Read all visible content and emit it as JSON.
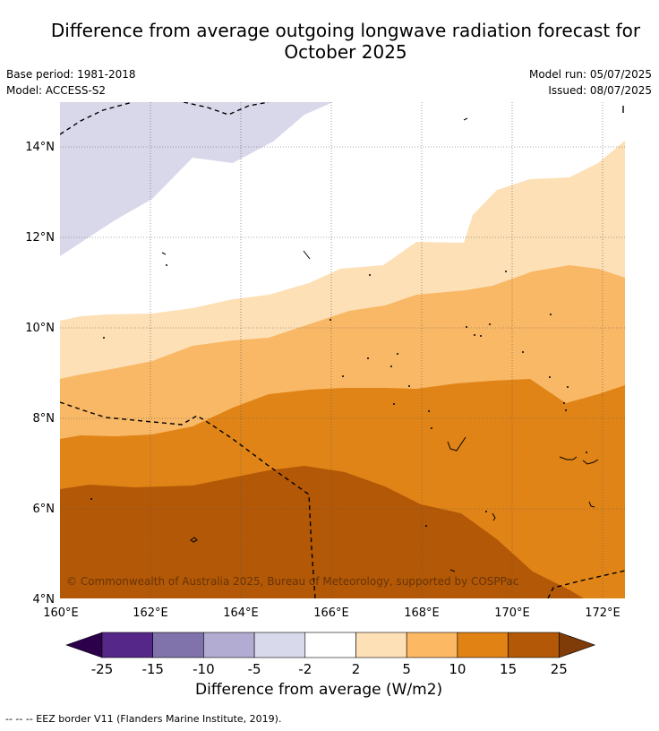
{
  "title": {
    "line1": "Difference from average outgoing longwave radiation forecast for",
    "line2": "October 2025"
  },
  "meta": {
    "base_period": "Base period: 1981-2018",
    "model": "Model: ACCESS-S2",
    "model_run": "Model run: 05/07/2025",
    "issued": "Issued: 08/07/2025"
  },
  "map": {
    "lat_labels": [
      "14°N",
      "12°N",
      "10°N",
      "8°N",
      "6°N",
      "4°N"
    ],
    "lon_labels": [
      "160°E",
      "162°E",
      "164°E",
      "166°E",
      "168°E",
      "170°E",
      "172°E"
    ],
    "copyright": "© Commonwealth of Australia 2025, Bureau of Meteorology, supported by COSPPac",
    "colors": {
      "lt_m2": "#d8d8ea",
      "m2_2": "#ffffff",
      "p2_5": "#fde0b6",
      "p5_10": "#f9b866",
      "p10_15": "#e08417",
      "p15_25": "#b35806"
    }
  },
  "colorbar": {
    "title": "Difference from average (W/m2)",
    "ticks": [
      "-25",
      "-15",
      "-10",
      "-5",
      "-2",
      "2",
      "5",
      "10",
      "15",
      "25"
    ],
    "colors": [
      "#2d004b",
      "#542788",
      "#8073ac",
      "#b2abd2",
      "#d8daeb",
      "#ffffff",
      "#fee0b6",
      "#fdb863",
      "#e08214",
      "#b35806",
      "#7f3b08"
    ]
  },
  "footnote": "--  --  -- EEZ border V11 (Flanders Marine Institute, 2019)."
}
